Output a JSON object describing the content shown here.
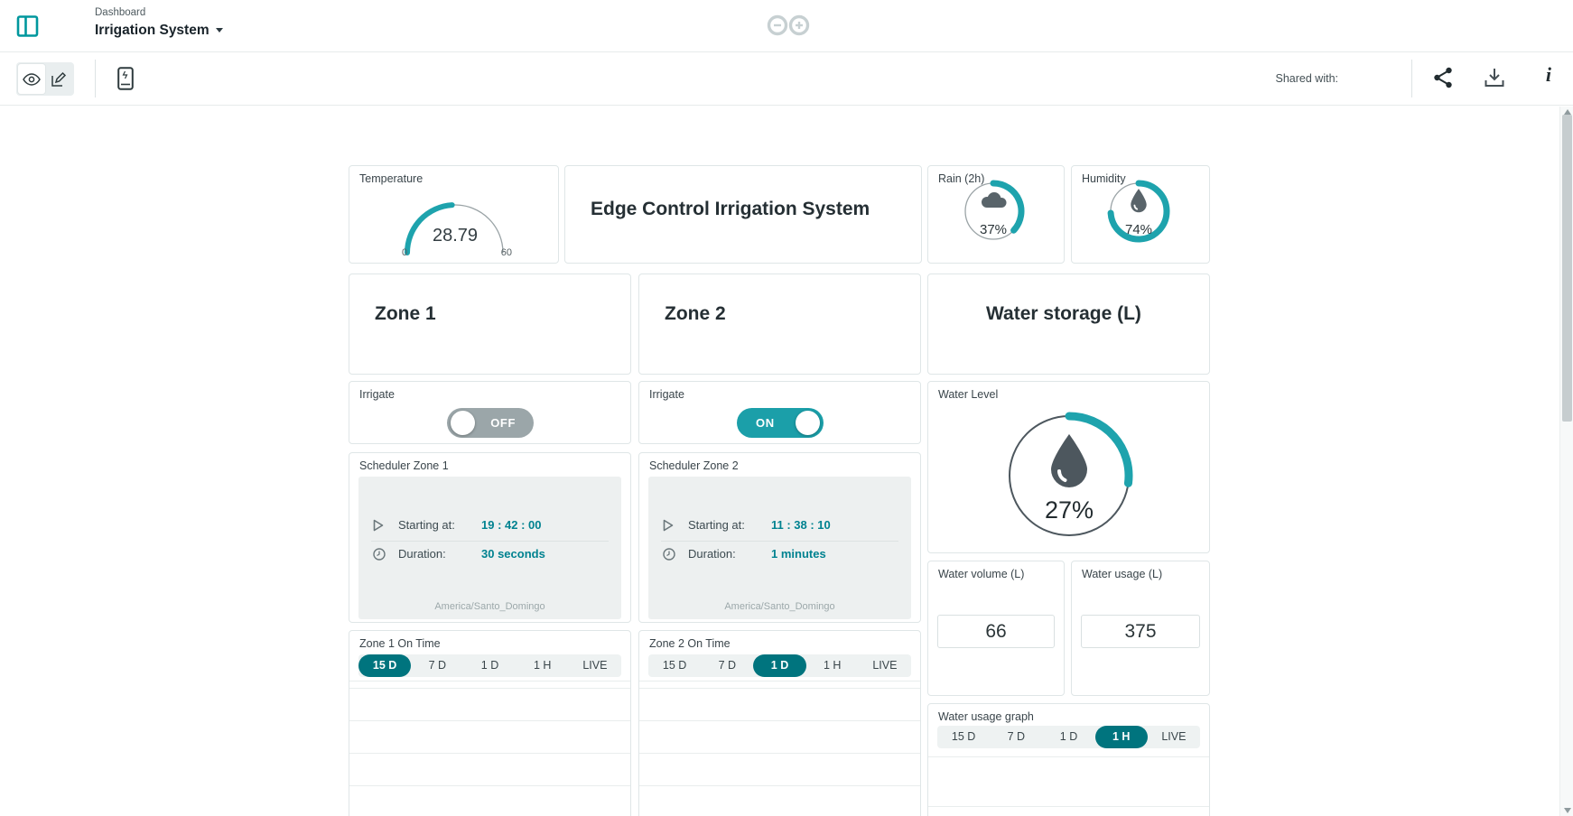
{
  "colors": {
    "accent": "#1ea3ad",
    "accent_dark": "#00747e",
    "teal_text": "#008290",
    "toggle_off": "#9ba6a9"
  },
  "header": {
    "breadcrumb": "Dashboard",
    "title": "Irrigation System"
  },
  "toolbar": {
    "shared_with": "Shared with:",
    "info_glyph": "i"
  },
  "widgets": {
    "temperature": {
      "title": "Temperature",
      "value": "28.79",
      "min": "0",
      "max": "60",
      "percent": 48
    },
    "banner": {
      "title": "Edge Control Irrigation System"
    },
    "rain": {
      "title": "Rain (2h)",
      "value": "37%",
      "percent": 37
    },
    "humidity": {
      "title": "Humidity",
      "value": "74%",
      "percent": 74
    },
    "zone1": {
      "title": "Zone 1"
    },
    "zone2": {
      "title": "Zone 2"
    },
    "water_storage": {
      "title": "Water storage (L)"
    },
    "irrigate1": {
      "title": "Irrigate",
      "state": "OFF",
      "on": false
    },
    "irrigate2": {
      "title": "Irrigate",
      "state": "ON",
      "on": true
    },
    "scheduler1": {
      "title": "Scheduler Zone 1",
      "starting_label": "Starting at:",
      "starting_value": "19 : 42 : 00",
      "duration_label": "Duration:",
      "duration_value": "30 seconds",
      "timezone": "America/Santo_Domingo"
    },
    "scheduler2": {
      "title": "Scheduler Zone 2",
      "starting_label": "Starting at:",
      "starting_value": "11 : 38 : 10",
      "duration_label": "Duration:",
      "duration_value": "1 minutes",
      "timezone": "America/Santo_Domingo"
    },
    "zone1_ontime": {
      "title": "Zone 1 On Time",
      "ranges": [
        "15 D",
        "7 D",
        "1 D",
        "1 H",
        "LIVE"
      ],
      "selected": "15 D"
    },
    "zone2_ontime": {
      "title": "Zone 2 On Time",
      "ranges": [
        "15 D",
        "7 D",
        "1 D",
        "1 H",
        "LIVE"
      ],
      "selected": "1 D"
    },
    "water_level": {
      "title": "Water Level",
      "value": "27%",
      "percent": 27
    },
    "water_volume": {
      "title": "Water volume (L)",
      "value": "66"
    },
    "water_usage": {
      "title": "Water usage (L)",
      "value": "375"
    },
    "water_usage_graph": {
      "title": "Water usage graph",
      "ranges": [
        "15 D",
        "7 D",
        "1 D",
        "1 H",
        "LIVE"
      ],
      "selected": "1 H"
    }
  }
}
